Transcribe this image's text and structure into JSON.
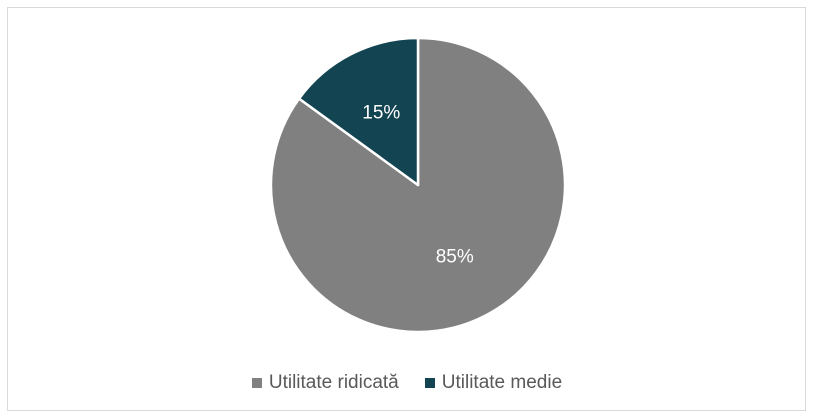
{
  "chart_data": {
    "type": "pie",
    "title": "",
    "legend_position": "bottom",
    "start_angle": "12 o'clock, clockwise",
    "slices": [
      {
        "name": "Utilitate ridicată",
        "value": 85,
        "label": "85%",
        "color": "#808080"
      },
      {
        "name": "Utilitate medie",
        "value": 15,
        "label": "15%",
        "color": "#124452"
      }
    ]
  }
}
